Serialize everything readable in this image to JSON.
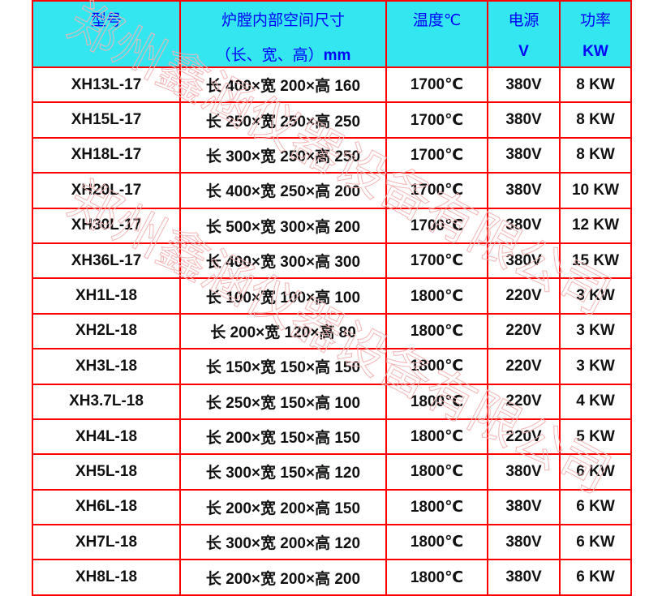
{
  "header": {
    "model": "型号",
    "chamber_line1": "炉膛内部空间尺寸",
    "chamber_line2_cn": "（长、宽、高）",
    "chamber_unit": "mm",
    "temperature": "温度℃",
    "power_supply": "电源",
    "power_supply_unit": "V",
    "power": "功率",
    "power_unit": "KW"
  },
  "rows": [
    {
      "model": "XH13L-17",
      "size": "长 400×宽 200×高 160",
      "temp": "1700℃",
      "voltage": "380V",
      "power": "8 KW"
    },
    {
      "model": "XH15L-17",
      "size": "长 250×宽 250×高 250",
      "temp": "1700℃",
      "voltage": "380V",
      "power": "8 KW"
    },
    {
      "model": "XH18L-17",
      "size": "长 300×宽 250×高 250",
      "temp": "1700℃",
      "voltage": "380V",
      "power": "8 KW"
    },
    {
      "model": "XH20L-17",
      "size": "长 400×宽 250×高 200",
      "temp": "1700℃",
      "voltage": "380V",
      "power": "10 KW"
    },
    {
      "model": "XH30L-17",
      "size": "长 500×宽 300×高 200",
      "temp": "1700℃",
      "voltage": "380V",
      "power": "12 KW"
    },
    {
      "model": "XH36L-17",
      "size": "长 400×宽 300×高 300",
      "temp": "1700℃",
      "voltage": "380V",
      "power": "15 KW"
    },
    {
      "model": "XH1L-18",
      "size": "长 100×宽 100×高 100",
      "temp": "1800℃",
      "voltage": "220V",
      "power": "3 KW"
    },
    {
      "model": "XH2L-18",
      "size": "长 200×宽 120×高 80",
      "temp": "1800℃",
      "voltage": "220V",
      "power": "3 KW"
    },
    {
      "model": "XH3L-18",
      "size": "长 150×宽 150×高 150",
      "temp": "1800℃",
      "voltage": "220V",
      "power": "3 KW"
    },
    {
      "model": "XH3.7L-18",
      "size": "长 250×宽 150×高 100",
      "temp": "1800℃",
      "voltage": "220V",
      "power": "4 KW"
    },
    {
      "model": "XH4L-18",
      "size": "长 200×宽 150×高 150",
      "temp": "1800℃",
      "voltage": "220V",
      "power": "5 KW"
    },
    {
      "model": "XH5L-18",
      "size": "长 300×宽 150×高 120",
      "temp": "1800℃",
      "voltage": "380V",
      "power": "6 KW"
    },
    {
      "model": "XH6L-18",
      "size": "长 200×宽 200×高 150",
      "temp": "1800℃",
      "voltage": "380V",
      "power": "6 KW"
    },
    {
      "model": "XH7L-18",
      "size": "长 300×宽 200×高 120",
      "temp": "1800℃",
      "voltage": "380V",
      "power": "6 KW"
    },
    {
      "model": "XH8L-18",
      "size": "长 200×宽 200×高 200",
      "temp": "1800℃",
      "voltage": "380V",
      "power": "6 KW"
    }
  ],
  "watermark": "郑州鑫涵仪器设备有限公司",
  "colors": {
    "header_bg": "#33e6f0",
    "header_text": "#0000ff",
    "border": "#ff0000",
    "watermark": "#f4b5b5"
  }
}
